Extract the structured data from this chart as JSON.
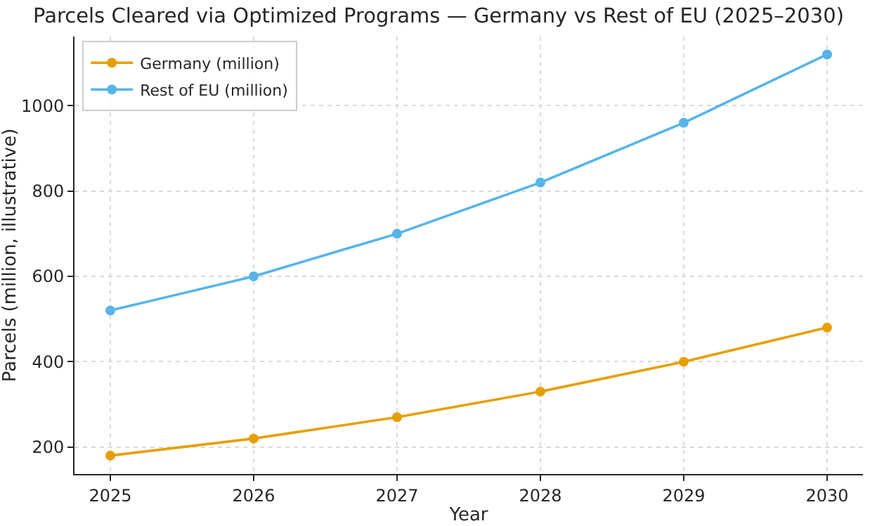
{
  "chart_data": {
    "type": "line",
    "title": "Parcels Cleared via Optimized Programs — Germany vs Rest of EU (2025–2030)",
    "xlabel": "Year",
    "ylabel": "Parcels (million, illustrative)",
    "x": [
      2025,
      2026,
      2027,
      2028,
      2029,
      2030
    ],
    "series": [
      {
        "name": "Germany (million)",
        "color": "#e69f00",
        "values": [
          180,
          220,
          270,
          330,
          400,
          480
        ]
      },
      {
        "name": "Rest of EU (million)",
        "color": "#56b4e9",
        "values": [
          520,
          600,
          700,
          820,
          960,
          1120
        ]
      }
    ],
    "xlim": [
      2024.75,
      2030.25
    ],
    "xticks": [
      2025,
      2026,
      2027,
      2028,
      2029,
      2030
    ],
    "ylim": [
      137,
      1162
    ],
    "yticks": [
      200,
      400,
      600,
      800,
      1000
    ],
    "grid": true,
    "legend": "top left",
    "marker": "circle",
    "line_style": "solid"
  }
}
